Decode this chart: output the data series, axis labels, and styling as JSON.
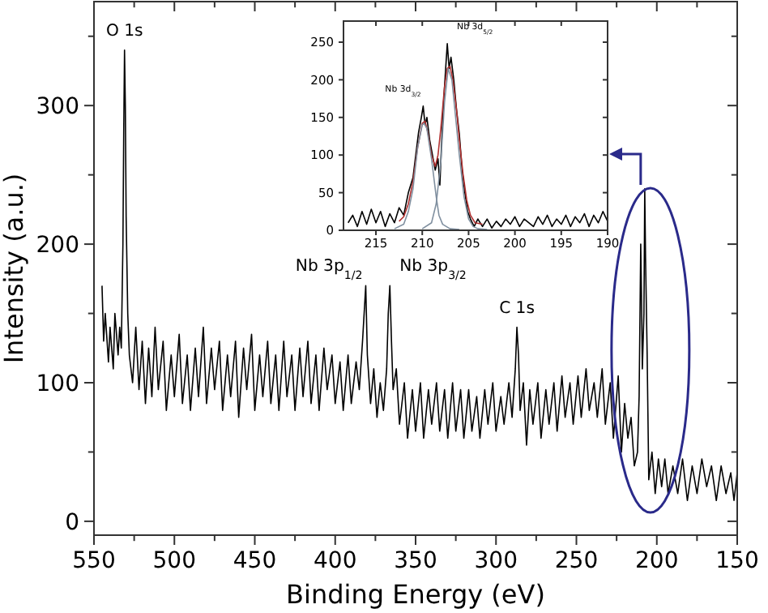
{
  "chart_data": [
    {
      "type": "line",
      "xlabel": "Binding Energy (eV)",
      "ylabel": "Intensity (a.u.)",
      "xlim": [
        550,
        150
      ],
      "ylim": [
        -10,
        375
      ],
      "xticks": [
        550,
        {
          "value": 525,
          "label": null
        },
        500,
        {
          "value": 475,
          "label": null
        },
        450,
        {
          "value": 425,
          "label": null
        },
        400,
        {
          "value": 375,
          "label": null
        },
        350,
        {
          "value": 325,
          "label": null
        },
        300,
        {
          "value": 275,
          "label": null
        },
        250,
        {
          "value": 225,
          "label": null
        },
        200,
        {
          "value": 175,
          "label": null
        },
        150
      ],
      "yticks": [
        0,
        {
          "value": 50,
          "label": null
        },
        100,
        {
          "value": 150,
          "label": null
        },
        200,
        {
          "value": 250,
          "label": null
        },
        300,
        {
          "value": 350,
          "label": null
        }
      ],
      "grid": false,
      "annotations": [
        {
          "text": "O 1s",
          "x": 531,
          "y": 340
        },
        {
          "text": "Nb 3p$_{1/2}$",
          "x": 381,
          "y": 170
        },
        {
          "text": "Nb 3p$_{3/2}$",
          "x": 366,
          "y": 170
        },
        {
          "text": "C 1s",
          "x": 287,
          "y": 140
        }
      ],
      "series": [
        {
          "color": "#000000",
          "x": [
            545,
            544,
            543,
            541,
            540,
            538,
            537,
            535,
            534,
            533,
            532,
            531.5,
            531,
            530.5,
            530,
            529,
            528,
            526,
            524,
            522,
            520,
            518,
            516,
            514,
            512,
            510,
            507,
            505,
            502,
            500,
            497,
            495,
            492,
            490,
            487,
            485,
            482,
            480,
            477,
            475,
            472,
            470,
            467,
            465,
            462,
            460,
            457,
            455,
            452,
            450,
            447,
            445,
            442,
            440,
            437,
            435,
            432,
            430,
            427,
            425,
            422,
            420,
            417,
            415,
            412,
            410,
            407,
            405,
            402,
            400,
            397,
            395,
            392,
            390,
            387,
            385,
            383,
            381,
            380,
            378,
            376,
            374,
            372,
            370,
            368,
            367,
            366,
            365,
            364,
            362,
            360,
            357,
            355,
            352,
            350,
            347,
            345,
            342,
            340,
            337,
            335,
            332,
            330,
            327,
            325,
            322,
            320,
            317,
            315,
            312,
            310,
            307,
            305,
            302,
            300,
            297,
            295,
            292,
            290,
            288,
            287,
            286,
            285,
            283,
            281,
            279,
            277,
            274,
            272,
            269,
            267,
            264,
            262,
            259,
            257,
            254,
            252,
            249,
            247,
            244,
            242,
            239,
            237,
            234,
            232,
            229,
            227,
            224,
            222,
            220,
            218,
            216,
            214,
            212,
            211,
            210,
            209.5,
            209,
            208,
            207.5,
            207,
            206,
            205,
            203,
            201,
            199,
            197,
            195,
            193,
            190,
            187,
            184,
            181,
            178,
            175,
            172,
            169,
            166,
            163,
            160,
            157,
            154,
            152,
            150
          ],
          "values": [
            170,
            130,
            150,
            115,
            140,
            110,
            150,
            120,
            140,
            125,
            200,
            280,
            340,
            300,
            220,
            150,
            120,
            100,
            140,
            95,
            130,
            85,
            125,
            90,
            140,
            95,
            130,
            80,
            120,
            90,
            135,
            85,
            120,
            80,
            125,
            90,
            140,
            85,
            125,
            95,
            130,
            80,
            120,
            90,
            130,
            75,
            125,
            95,
            135,
            80,
            120,
            90,
            130,
            85,
            120,
            80,
            130,
            90,
            120,
            80,
            125,
            90,
            130,
            85,
            120,
            80,
            125,
            95,
            120,
            85,
            115,
            80,
            120,
            85,
            115,
            95,
            130,
            170,
            120,
            85,
            110,
            75,
            100,
            80,
            110,
            150,
            170,
            130,
            95,
            110,
            70,
            100,
            60,
            95,
            65,
            100,
            60,
            95,
            70,
            100,
            65,
            95,
            60,
            100,
            65,
            95,
            60,
            95,
            65,
            90,
            60,
            95,
            70,
            100,
            65,
            90,
            70,
            100,
            75,
            110,
            140,
            120,
            80,
            100,
            55,
            95,
            70,
            100,
            60,
            95,
            70,
            100,
            65,
            105,
            75,
            100,
            70,
            105,
            75,
            110,
            80,
            100,
            75,
            110,
            70,
            100,
            60,
            105,
            50,
            85,
            60,
            75,
            40,
            50,
            90,
            200,
            160,
            110,
            150,
            240,
            190,
            120,
            30,
            50,
            20,
            45,
            25,
            45,
            20,
            40,
            20,
            45,
            15,
            40,
            20,
            45,
            25,
            40,
            15,
            40,
            20,
            35,
            15,
            35
          ]
        }
      ]
    },
    {
      "type": "line",
      "xlim": [
        218.5,
        190
      ],
      "ylim": [
        0,
        278
      ],
      "xticks": [
        215,
        210,
        205,
        200,
        195,
        190
      ],
      "yticks": [
        0,
        50,
        100,
        150,
        200,
        250
      ],
      "grid": false,
      "annotations": [
        {
          "text": "Nb 3d$_{3/2}$",
          "x": 209.8,
          "y": 165
        },
        {
          "text": "Nb 3d$_{5/2}$",
          "x": 207.3,
          "y": 248
        }
      ],
      "series": [
        {
          "color": "#000000",
          "x": [
            218,
            217.5,
            217,
            216.5,
            216,
            215.5,
            215,
            214.5,
            214,
            213.5,
            213,
            212.5,
            212,
            211.5,
            211,
            210.7,
            210.4,
            210.1,
            209.9,
            209.7,
            209.5,
            209.2,
            208.9,
            208.6,
            208.3,
            208.1,
            207.9,
            207.7,
            207.5,
            207.3,
            207.1,
            206.9,
            206.6,
            206.3,
            206,
            205.7,
            205.4,
            205.1,
            204.8,
            204.4,
            204,
            203.5,
            203,
            202.5,
            202,
            201.5,
            201,
            200.5,
            200,
            199.5,
            199,
            198,
            197.5,
            197,
            196.5,
            196,
            195.5,
            195,
            194.5,
            194,
            193.5,
            193,
            192.5,
            192,
            191.5,
            191,
            190.5,
            190
          ],
          "values": [
            10,
            20,
            5,
            25,
            8,
            28,
            10,
            25,
            5,
            22,
            10,
            30,
            20,
            50,
            70,
            100,
            130,
            150,
            165,
            140,
            150,
            120,
            100,
            80,
            95,
            60,
            120,
            170,
            210,
            248,
            215,
            230,
            200,
            160,
            128,
            80,
            50,
            25,
            15,
            5,
            15,
            5,
            15,
            3,
            12,
            5,
            15,
            8,
            18,
            5,
            15,
            5,
            18,
            8,
            20,
            5,
            15,
            8,
            20,
            5,
            18,
            10,
            22,
            5,
            20,
            10,
            25,
            12
          ]
        },
        {
          "color": "#b03030",
          "x": [
            212.5,
            212,
            211.5,
            211,
            210.5,
            210,
            209.7,
            209.4,
            209,
            208.6,
            208.3,
            208,
            207.6,
            207.3,
            207,
            206.7,
            206.3,
            206,
            205.6,
            205.2,
            204.8,
            204.3,
            203.5
          ],
          "values": [
            12,
            18,
            35,
            65,
            110,
            142,
            145,
            130,
            100,
            85,
            100,
            135,
            190,
            215,
            218,
            200,
            160,
            120,
            75,
            40,
            20,
            10,
            8
          ]
        },
        {
          "color": "#8090a0",
          "x": [
            213,
            212,
            211.5,
            211,
            210.5,
            210,
            209.8,
            209.5,
            209,
            208.5,
            208.2,
            207.8,
            207,
            206
          ],
          "values": [
            2,
            8,
            25,
            55,
            110,
            140,
            142,
            135,
            95,
            45,
            20,
            8,
            2,
            1
          ]
        },
        {
          "color": "#8090a0",
          "x": [
            210,
            209,
            208.5,
            208,
            207.6,
            207.2,
            206.8,
            206.4,
            206,
            205.5,
            205,
            204.5,
            204,
            203
          ],
          "values": [
            2,
            10,
            35,
            90,
            170,
            215,
            200,
            150,
            100,
            45,
            15,
            5,
            2,
            1
          ]
        }
      ]
    }
  ]
}
